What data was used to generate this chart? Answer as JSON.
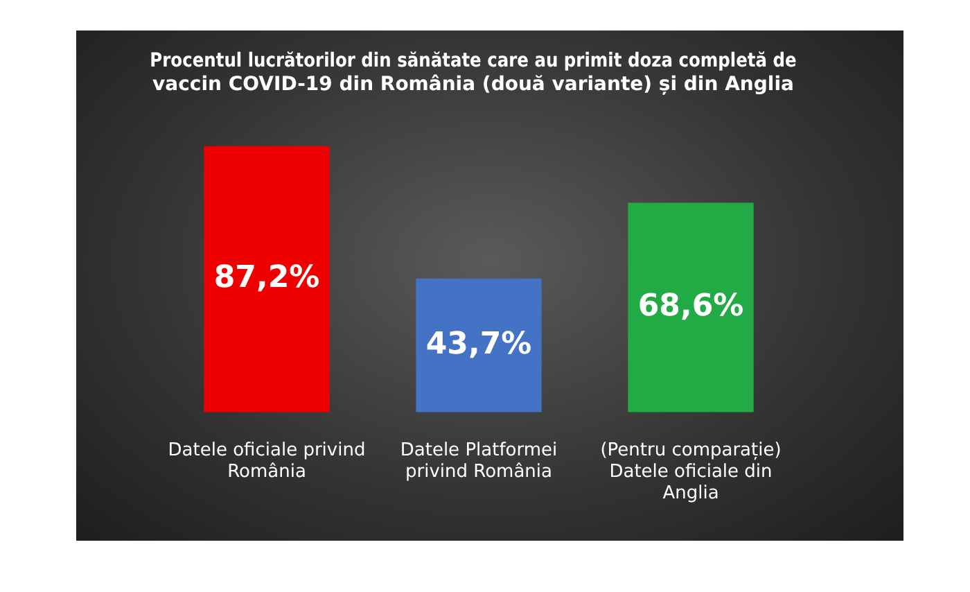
{
  "chart_data": {
    "type": "bar",
    "title": "Procentul lucrătorilor din sănătate care au primit doza completă de vaccin COVID-19 din România (două variante) și din Anglia",
    "categories": [
      "Datele oficiale privind România",
      "Datele Platformei privind România",
      "(Pentru comparație) Datele oficiale din Anglia"
    ],
    "values": [
      87.2,
      43.7,
      68.6
    ],
    "colors": [
      "#ee0000",
      "#4472c4",
      "#22aa44"
    ],
    "value_labels": [
      "87,2%",
      "43,7%",
      "68,6%"
    ],
    "grid": false,
    "legend": false,
    "tick_labels": "x"
  }
}
